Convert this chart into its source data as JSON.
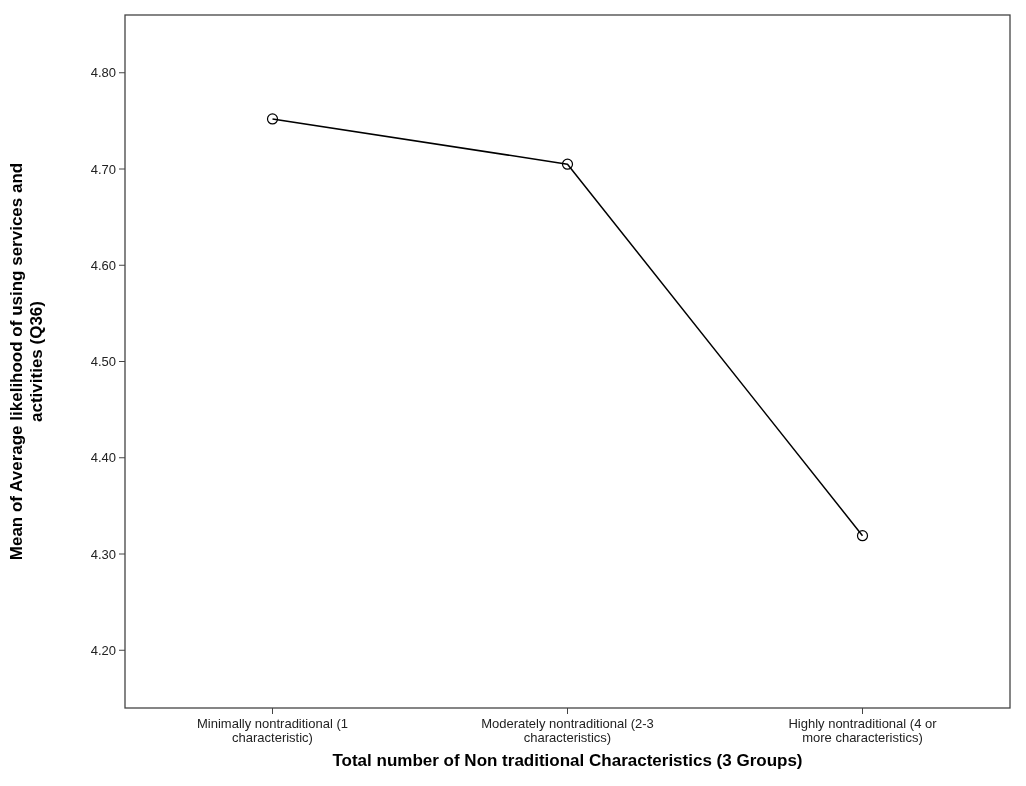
{
  "chart_data": {
    "type": "line",
    "xlabel": "Total number of Non traditional Characteristics (3 Groups)",
    "ylabel": "Mean of Average likelihood of using services and activities (Q36)",
    "categories": [
      "Minimally nontraditional (1 characteristic)",
      "Moderately nontraditional (2-3 characteristics)",
      "Highly nontraditional (4 or more characteristics)"
    ],
    "series": [
      {
        "color": "#000000",
        "values": [
          4.752,
          4.705,
          4.319
        ]
      }
    ],
    "ylim": [
      4.14,
      4.86
    ],
    "yticks": [
      {
        "value": 4.2,
        "label": "4.20"
      },
      {
        "value": 4.3,
        "label": "4.30"
      },
      {
        "value": 4.4,
        "label": "4.40"
      },
      {
        "value": 4.5,
        "label": "4.50"
      },
      {
        "value": 4.6,
        "label": "4.60"
      },
      {
        "value": 4.7,
        "label": "4.70"
      },
      {
        "value": 4.8,
        "label": "4.80"
      }
    ],
    "marker": "circle",
    "line_style": "solid",
    "grid": false
  }
}
